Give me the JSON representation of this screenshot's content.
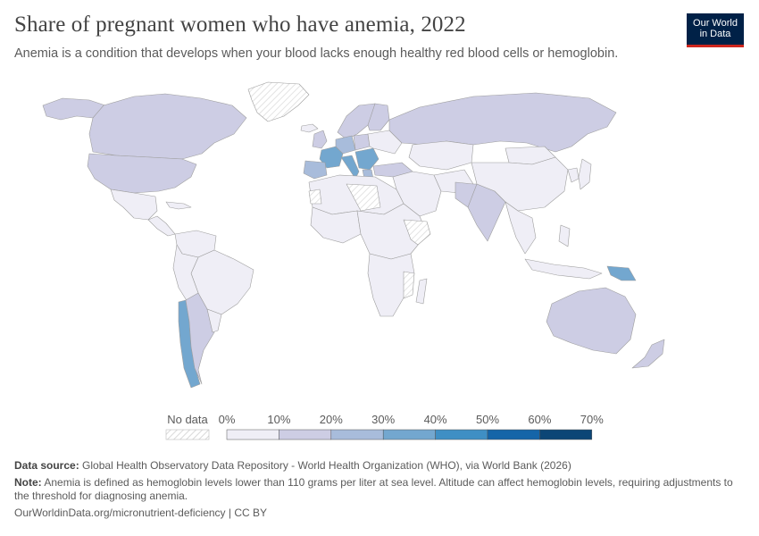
{
  "header": {
    "title": "Share of pregnant women who have anemia, 2022",
    "subtitle": "Anemia is a condition that develops when your blood lacks enough healthy red blood cells or hemoglobin."
  },
  "logo": {
    "line1": "Our World",
    "line2": "in Data",
    "bg_color": "#002147",
    "accent_color": "#ce261e"
  },
  "legend": {
    "no_data_label": "No data",
    "ticks": [
      "0%",
      "10%",
      "20%",
      "30%",
      "40%",
      "50%",
      "60%",
      "70%"
    ],
    "bin_colors": [
      "#efeef6",
      "#cdcde4",
      "#a8bcdb",
      "#73a7cf",
      "#3f8fc4",
      "#1565a8",
      "#0c4676"
    ]
  },
  "map": {
    "land_default_color": "#efeef6",
    "no_data_pattern_color": "#dcdcdc",
    "border_color": "#9e9e9e"
  },
  "footer": {
    "source_label": "Data source:",
    "source_text": "Global Health Observatory Data Repository - World Health Organization (WHO), via World Bank (2026)",
    "note_label": "Note:",
    "note_text": "Anemia is defined as hemoglobin levels lower than 110 grams per liter at sea level. Altitude can affect hemoglobin levels, requiring adjustments to the threshold for diagnosing anemia.",
    "url": "OurWorldinData.org/micronutrient-deficiency | CC BY"
  }
}
